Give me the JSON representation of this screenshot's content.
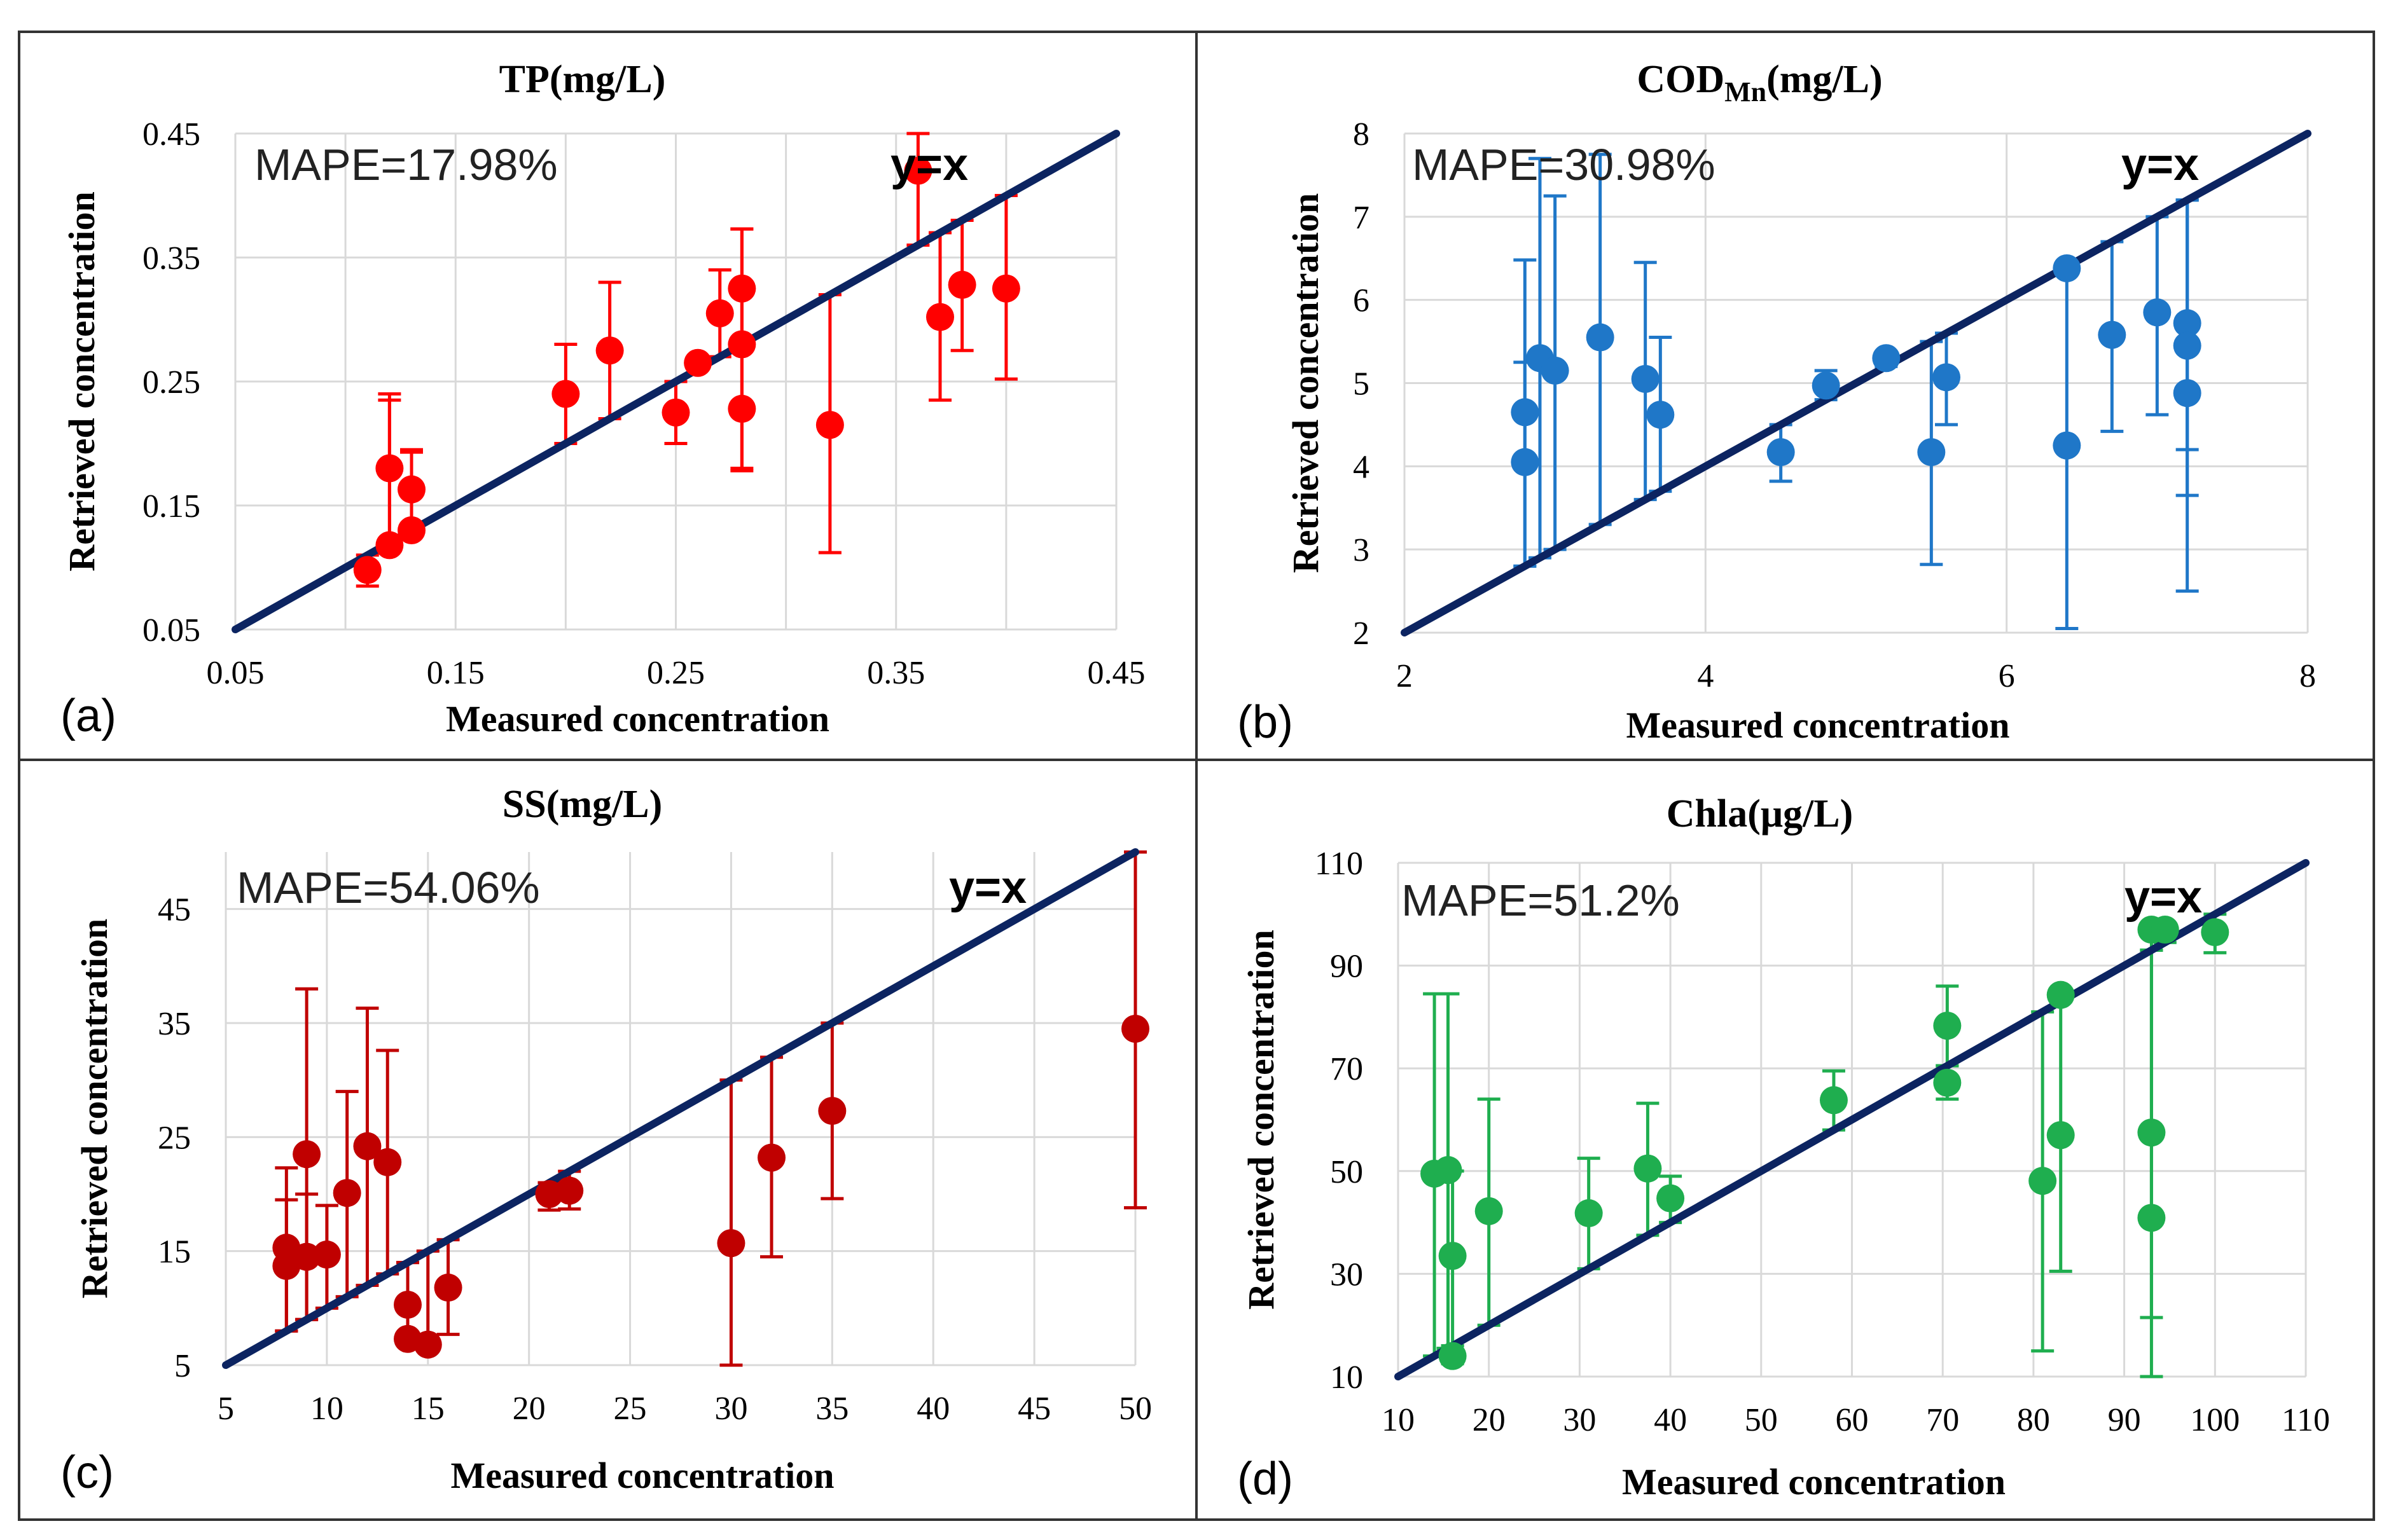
{
  "figure": {
    "border_color": "#333333",
    "grid_color": "#d9d9d9",
    "line_color": "#0c2461"
  },
  "chart_data": [
    {
      "type": "scatter",
      "panel_label": "(a)",
      "title": "TP(mg/L)",
      "title_main": "TP(mg/L)",
      "title_sub": "",
      "title_suffix": "",
      "xlabel": "Measured concentration",
      "ylabel": "Retrieved concentration",
      "xlim": [
        0.05,
        0.45
      ],
      "ylim": [
        0.05,
        0.45
      ],
      "xticks": [
        0.05,
        0.15,
        0.25,
        0.35,
        0.45
      ],
      "yticks": [
        0.05,
        0.15,
        0.25,
        0.35,
        0.45
      ],
      "xtick_labels": [
        "0.05",
        "0.15",
        "0.25",
        "0.35",
        "0.45"
      ],
      "ytick_labels": [
        "0.05",
        "0.15",
        "0.25",
        "0.35",
        "0.45"
      ],
      "xgrid": [
        0.05,
        0.1,
        0.15,
        0.2,
        0.25,
        0.3,
        0.35,
        0.4,
        0.45
      ],
      "ygrid": [
        0.05,
        0.15,
        0.25,
        0.35,
        0.45
      ],
      "annotation": "MAPE=17.98%",
      "ref_line_label": "y=x",
      "color": "#ff0000",
      "points": [
        {
          "x": 0.11,
          "y": 0.098,
          "lo": 0.085,
          "hi": 0.11
        },
        {
          "x": 0.12,
          "y": 0.118,
          "lo": 0.118,
          "hi": 0.24
        },
        {
          "x": 0.12,
          "y": 0.18,
          "lo": 0.115,
          "hi": 0.235
        },
        {
          "x": 0.13,
          "y": 0.13,
          "lo": 0.13,
          "hi": 0.195
        },
        {
          "x": 0.13,
          "y": 0.163,
          "lo": 0.13,
          "hi": 0.193
        },
        {
          "x": 0.2,
          "y": 0.24,
          "lo": 0.2,
          "hi": 0.28
        },
        {
          "x": 0.22,
          "y": 0.275,
          "lo": 0.22,
          "hi": 0.33
        },
        {
          "x": 0.25,
          "y": 0.225,
          "lo": 0.2,
          "hi": 0.25
        },
        {
          "x": 0.26,
          "y": 0.265,
          "lo": 0.26,
          "hi": 0.265
        },
        {
          "x": 0.27,
          "y": 0.305,
          "lo": 0.27,
          "hi": 0.34
        },
        {
          "x": 0.28,
          "y": 0.28,
          "lo": 0.18,
          "hi": 0.373
        },
        {
          "x": 0.28,
          "y": 0.325,
          "lo": 0.28,
          "hi": 0.373
        },
        {
          "x": 0.28,
          "y": 0.228,
          "lo": 0.178,
          "hi": 0.28
        },
        {
          "x": 0.32,
          "y": 0.215,
          "lo": 0.112,
          "hi": 0.32
        },
        {
          "x": 0.36,
          "y": 0.42,
          "lo": 0.36,
          "hi": 0.45
        },
        {
          "x": 0.37,
          "y": 0.302,
          "lo": 0.235,
          "hi": 0.37
        },
        {
          "x": 0.38,
          "y": 0.328,
          "lo": 0.275,
          "hi": 0.38
        },
        {
          "x": 0.4,
          "y": 0.325,
          "lo": 0.252,
          "hi": 0.4
        }
      ]
    },
    {
      "type": "scatter",
      "panel_label": "(b)",
      "title": "CODMn(mg/L)",
      "title_main": "COD",
      "title_sub": "Mn",
      "title_suffix": "(mg/L)",
      "xlabel": "Measured concentration",
      "ylabel": "Retrieved concentration",
      "xlim": [
        2,
        8
      ],
      "ylim": [
        2,
        8
      ],
      "xticks": [
        2,
        4,
        6,
        8
      ],
      "yticks": [
        2,
        3,
        4,
        5,
        6,
        7,
        8
      ],
      "xtick_labels": [
        "2",
        "4",
        "6",
        "8"
      ],
      "ytick_labels": [
        "2",
        "3",
        "4",
        "5",
        "6",
        "7",
        "8"
      ],
      "xgrid": [
        2,
        4,
        6,
        8
      ],
      "ygrid": [
        2,
        3,
        4,
        5,
        6,
        7,
        8
      ],
      "annotation": "MAPE=30.98%",
      "ref_line_label": "y=x",
      "color": "#1f77c8",
      "points": [
        {
          "x": 2.8,
          "y": 4.05,
          "lo": 2.8,
          "hi": 5.25
        },
        {
          "x": 2.8,
          "y": 4.65,
          "lo": 2.8,
          "hi": 6.48
        },
        {
          "x": 2.9,
          "y": 5.3,
          "lo": 2.9,
          "hi": 7.7
        },
        {
          "x": 3.0,
          "y": 5.15,
          "lo": 3.0,
          "hi": 7.25
        },
        {
          "x": 3.3,
          "y": 5.55,
          "lo": 3.3,
          "hi": 7.75
        },
        {
          "x": 3.6,
          "y": 5.05,
          "lo": 3.6,
          "hi": 6.45
        },
        {
          "x": 3.7,
          "y": 4.62,
          "lo": 3.7,
          "hi": 5.55
        },
        {
          "x": 4.5,
          "y": 4.17,
          "lo": 3.82,
          "hi": 4.5
        },
        {
          "x": 4.8,
          "y": 4.97,
          "lo": 4.8,
          "hi": 5.15
        },
        {
          "x": 5.2,
          "y": 5.3,
          "lo": 5.2,
          "hi": 5.3
        },
        {
          "x": 5.5,
          "y": 4.17,
          "lo": 2.82,
          "hi": 5.5
        },
        {
          "x": 5.6,
          "y": 5.07,
          "lo": 4.5,
          "hi": 5.6
        },
        {
          "x": 6.4,
          "y": 6.38,
          "lo": 6.38,
          "hi": 6.4
        },
        {
          "x": 6.4,
          "y": 4.25,
          "lo": 2.05,
          "hi": 6.4
        },
        {
          "x": 6.7,
          "y": 5.58,
          "lo": 4.42,
          "hi": 6.7
        },
        {
          "x": 7.0,
          "y": 5.85,
          "lo": 4.62,
          "hi": 7.0
        },
        {
          "x": 7.2,
          "y": 5.72,
          "lo": 4.2,
          "hi": 7.2
        },
        {
          "x": 7.2,
          "y": 5.45,
          "lo": 3.65,
          "hi": 7.2
        },
        {
          "x": 7.2,
          "y": 4.88,
          "lo": 2.5,
          "hi": 7.2
        }
      ]
    },
    {
      "type": "scatter",
      "panel_label": "(c)",
      "title": "SS(mg/L)",
      "title_main": "SS(mg/L)",
      "title_sub": "",
      "title_suffix": "",
      "xlabel": "Measured concentration",
      "ylabel": "Retrieved concentration",
      "xlim": [
        5,
        50
      ],
      "ylim": [
        5,
        50
      ],
      "xticks": [
        5,
        10,
        15,
        20,
        25,
        30,
        35,
        40,
        45,
        50
      ],
      "yticks": [
        5,
        15,
        25,
        35,
        45
      ],
      "xtick_labels": [
        "5",
        "10",
        "15",
        "20",
        "25",
        "30",
        "35",
        "40",
        "45",
        "50"
      ],
      "ytick_labels": [
        "5",
        "15",
        "25",
        "35",
        "45"
      ],
      "xgrid": [
        5,
        10,
        15,
        20,
        25,
        30,
        35,
        40,
        45,
        50
      ],
      "ygrid": [
        5,
        15,
        25,
        35,
        45
      ],
      "annotation": "MAPE=54.06%",
      "ref_line_label": "y=x",
      "color": "#c00000",
      "points": [
        {
          "x": 8,
          "y": 15.3,
          "lo": 8,
          "hi": 22.3
        },
        {
          "x": 8,
          "y": 13.7,
          "lo": 8,
          "hi": 19.5
        },
        {
          "x": 9,
          "y": 23.5,
          "lo": 9,
          "hi": 38
        },
        {
          "x": 9,
          "y": 14.5,
          "lo": 9,
          "hi": 20
        },
        {
          "x": 10,
          "y": 14.7,
          "lo": 10,
          "hi": 19
        },
        {
          "x": 11,
          "y": 20.1,
          "lo": 11,
          "hi": 29
        },
        {
          "x": 12,
          "y": 24.2,
          "lo": 12,
          "hi": 36.3
        },
        {
          "x": 13,
          "y": 22.8,
          "lo": 13,
          "hi": 32.6
        },
        {
          "x": 14,
          "y": 10.3,
          "lo": 10.3,
          "hi": 14
        },
        {
          "x": 14,
          "y": 7.3,
          "lo": 7.3,
          "hi": 14
        },
        {
          "x": 15,
          "y": 6.8,
          "lo": 6.8,
          "hi": 15
        },
        {
          "x": 16,
          "y": 11.8,
          "lo": 7.7,
          "hi": 16
        },
        {
          "x": 21,
          "y": 20,
          "lo": 18.6,
          "hi": 21
        },
        {
          "x": 22,
          "y": 20.3,
          "lo": 18.7,
          "hi": 22
        },
        {
          "x": 30,
          "y": 15.7,
          "lo": 5,
          "hi": 30
        },
        {
          "x": 32,
          "y": 23.2,
          "lo": 14.5,
          "hi": 32
        },
        {
          "x": 35,
          "y": 27.3,
          "lo": 19.6,
          "hi": 35
        },
        {
          "x": 50,
          "y": 34.5,
          "lo": 18.8,
          "hi": 50
        }
      ]
    },
    {
      "type": "scatter",
      "panel_label": "(d)",
      "title": "Chla(μg/L)",
      "title_main": "Chla(μg/L)",
      "title_sub": "",
      "title_suffix": "",
      "xlabel": "Measured concentration",
      "ylabel": "Retrieved concentration",
      "xlim": [
        10,
        110
      ],
      "ylim": [
        10,
        110
      ],
      "xticks": [
        10,
        20,
        30,
        40,
        50,
        60,
        70,
        80,
        90,
        100,
        110
      ],
      "yticks": [
        10,
        30,
        50,
        70,
        90,
        110
      ],
      "xtick_labels": [
        "10",
        "20",
        "30",
        "40",
        "50",
        "60",
        "70",
        "80",
        "90",
        "100",
        "110"
      ],
      "ytick_labels": [
        "10",
        "30",
        "50",
        "70",
        "90",
        "110"
      ],
      "xgrid": [
        10,
        20,
        30,
        40,
        50,
        60,
        70,
        80,
        90,
        100,
        110
      ],
      "ygrid": [
        10,
        30,
        50,
        70,
        90,
        110
      ],
      "annotation": "MAPE=51.2%",
      "ref_line_label": "y=x",
      "color": "#1fae4f",
      "points": [
        {
          "x": 14,
          "y": 49.5,
          "lo": 14,
          "hi": 84.5
        },
        {
          "x": 15.5,
          "y": 50.2,
          "lo": 15.5,
          "hi": 84.5
        },
        {
          "x": 16,
          "y": 33.5,
          "lo": 16,
          "hi": 50
        },
        {
          "x": 16,
          "y": 14,
          "lo": 12.5,
          "hi": 16
        },
        {
          "x": 20,
          "y": 42.2,
          "lo": 20,
          "hi": 64
        },
        {
          "x": 31,
          "y": 41.8,
          "lo": 31,
          "hi": 52.5
        },
        {
          "x": 37.5,
          "y": 50.5,
          "lo": 37.5,
          "hi": 63.2
        },
        {
          "x": 40,
          "y": 44.7,
          "lo": 40,
          "hi": 49
        },
        {
          "x": 58,
          "y": 63.8,
          "lo": 58,
          "hi": 69.5
        },
        {
          "x": 70.5,
          "y": 78.3,
          "lo": 70.5,
          "hi": 86
        },
        {
          "x": 70.5,
          "y": 67.2,
          "lo": 64,
          "hi": 70.5
        },
        {
          "x": 81,
          "y": 48.1,
          "lo": 15,
          "hi": 81
        },
        {
          "x": 83,
          "y": 84.3,
          "lo": 83,
          "hi": 84.3
        },
        {
          "x": 83,
          "y": 57,
          "lo": 30.5,
          "hi": 83
        },
        {
          "x": 93,
          "y": 97,
          "lo": 93,
          "hi": 97
        },
        {
          "x": 93,
          "y": 57.5,
          "lo": 21.5,
          "hi": 93
        },
        {
          "x": 93,
          "y": 40.9,
          "lo": 10,
          "hi": 93
        },
        {
          "x": 94.5,
          "y": 97,
          "lo": 94.5,
          "hi": 97
        },
        {
          "x": 100,
          "y": 96.5,
          "lo": 92.5,
          "hi": 100
        }
      ]
    }
  ]
}
